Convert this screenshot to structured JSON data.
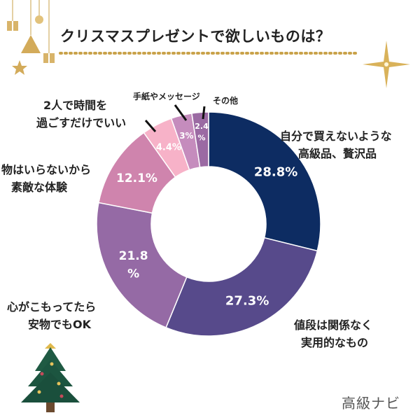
{
  "title": "クリスマスプレゼントで欲しいものは？",
  "brand": "高級ナビ",
  "chart_data": {
    "type": "pie",
    "title": "クリスマスプレゼントで欲しいものは？",
    "categories": [
      "自分で買えないような高級品、贅沢品",
      "値段は関係なく実用的なもの",
      "心がこもってたら安物でもOK",
      "物はいらないから素敵な体験",
      "2人で時間を過ごすだけでいい",
      "手紙やメッセージ",
      "その他"
    ],
    "values": [
      28.8,
      27.3,
      21.8,
      12.1,
      4.4,
      3,
      2.4
    ],
    "value_labels": [
      "28.8%",
      "27.3%",
      "21.8\n%",
      "12.1%",
      "4.4%",
      "3%",
      "2.4\n%"
    ],
    "colors": [
      "#0d2c62",
      "#574a8b",
      "#956aa5",
      "#cf84ad",
      "#f7b2c8",
      "#c58cbd",
      "#9b6aa3"
    ],
    "legend": "none",
    "labels": {
      "line1": [
        "自分で買えないような",
        "値段は関係なく",
        "心がこもってたら",
        "物はいらないから",
        "2人で時間を",
        "手紙やメッセージ",
        "その他"
      ],
      "line2": [
        "高級品、贅沢品",
        "実用的なもの",
        "安物でもOK",
        "素敵な体験",
        "過ごすだけでいい",
        "",
        ""
      ]
    }
  }
}
